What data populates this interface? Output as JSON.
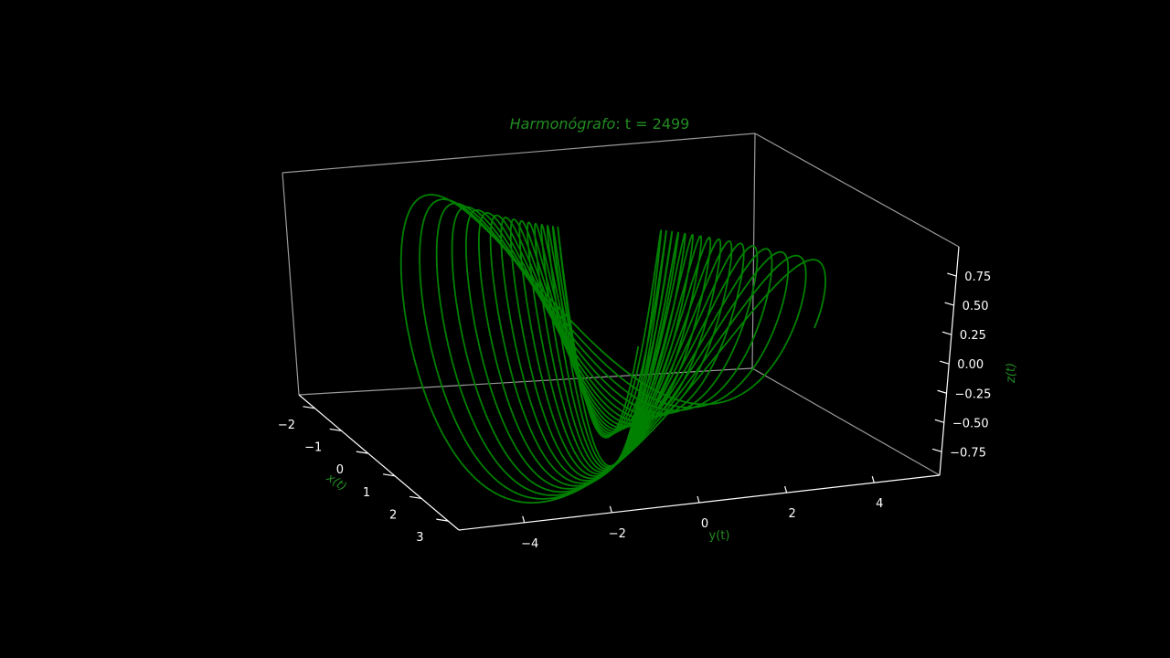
{
  "chart_data": {
    "type": "line3d",
    "title_prefix": "Harmonógrafo",
    "title_suffix": ": t = 2499",
    "xlabel": "x(t)",
    "ylabel": "y(t)",
    "zlabel": "z(t)",
    "xlim": [
      -2.6,
      3.4
    ],
    "ylim": [
      -5.5,
      5.5
    ],
    "zlim": [
      -0.95,
      1.0
    ],
    "x_ticks": [
      "−2",
      "−1",
      "0",
      "1",
      "2",
      "3"
    ],
    "x_tick_values": [
      -2,
      -1,
      0,
      1,
      2,
      3
    ],
    "y_ticks": [
      "−4",
      "−2",
      "0",
      "2",
      "4"
    ],
    "y_tick_values": [
      -4,
      -2,
      0,
      2,
      4
    ],
    "z_ticks": [
      "0.75",
      "0.50",
      "0.25",
      "0.00",
      "−0.25",
      "−0.50",
      "−0.75"
    ],
    "z_tick_values": [
      0.75,
      0.5,
      0.25,
      0.0,
      -0.25,
      -0.5,
      -0.75
    ],
    "grid": false,
    "background": "#000000",
    "line_color": "#008000",
    "label_color": "#228b22",
    "tick_color": "#ffffff",
    "series": [
      {
        "t_max": 2499,
        "x": {
          "amplitude": 2.7,
          "frequency": 1.0,
          "phase": 0.0,
          "damping": 0.0006,
          "offset": 0.5
        },
        "y": {
          "amplitude": 5.0,
          "frequency": 1.0,
          "phase": 1.5708,
          "damping": 0.0006,
          "offset": 0.0
        },
        "z": {
          "amplitude": 0.95,
          "frequency": 2.01,
          "phase": 0.0,
          "damping": 0.0,
          "offset": 0.0
        }
      }
    ]
  }
}
